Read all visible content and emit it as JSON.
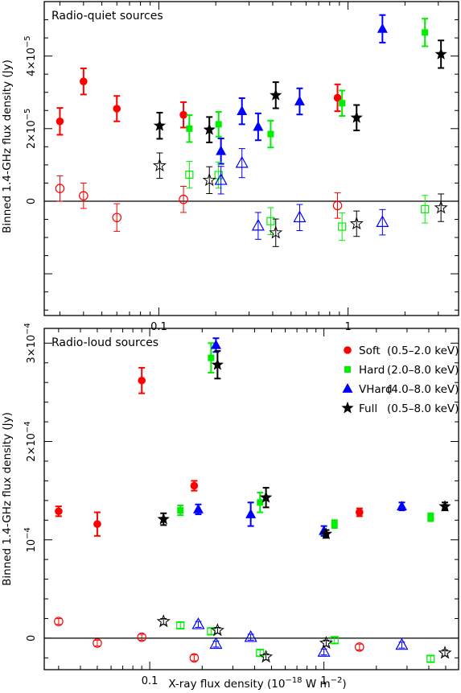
{
  "chart_data": {
    "type": "scatter",
    "x_axis": {
      "label": "X-ray flux density (10",
      "label_exp": "−18",
      "label_tail": " W m",
      "label_tail_exp": "−2",
      "label_end": ")",
      "scale": "log",
      "tick_labels": [
        "0.1",
        "1"
      ]
    },
    "colors": {
      "Soft": "#ff0000",
      "Hard": "#00ee00",
      "VHard": "#0000ff",
      "Full": "#000000"
    },
    "legend": {
      "placement": "top-right",
      "entries": [
        {
          "name": "Soft",
          "band": "(0.5–2.0 keV)"
        },
        {
          "name": "Hard",
          "band": "(2.0–8.0 keV)"
        },
        {
          "name": "VHard",
          "band": "(4.0–8.0 keV)"
        },
        {
          "name": "Full",
          "band": "(0.5–8.0 keV)"
        }
      ]
    },
    "panels": [
      {
        "title": "Radio-quiet sources",
        "ylabel": "Binned 1.4-GHz flux density (Jy)",
        "xlim": [
          0.0248,
          3.84
        ],
        "ylim": [
          -3.15e-05,
          5.5e-05
        ],
        "y_ticks": [
          {
            "value": 0,
            "base": "0",
            "exp": ""
          },
          {
            "value": 2e-05,
            "base": "2×10",
            "exp": "−5"
          },
          {
            "value": 4e-05,
            "base": "4×10",
            "exp": "−5"
          }
        ],
        "series": [
          {
            "name": "Soft",
            "marker": "circle",
            "filled": true,
            "points": [
              {
                "x": 0.03,
                "y": 2.2e-05,
                "err": 3.7e-06
              },
              {
                "x": 0.04,
                "y": 3.3e-05,
                "err": 3.6e-06
              },
              {
                "x": 0.06,
                "y": 2.55e-05,
                "err": 3.5e-06
              },
              {
                "x": 0.135,
                "y": 2.38e-05,
                "err": 3.5e-06
              },
              {
                "x": 0.88,
                "y": 2.85e-05,
                "err": 3.7e-06
              }
            ]
          },
          {
            "name": "Hard",
            "marker": "square",
            "filled": true,
            "points": [
              {
                "x": 0.145,
                "y": 2e-05,
                "err": 3.7e-06
              },
              {
                "x": 0.207,
                "y": 2.12e-05,
                "err": 3.4e-06
              },
              {
                "x": 0.39,
                "y": 1.85e-05,
                "err": 3.7e-06
              },
              {
                "x": 0.93,
                "y": 2.7e-05,
                "err": 3.5e-06
              },
              {
                "x": 2.55,
                "y": 4.65e-05,
                "err": 3.8e-06
              }
            ]
          },
          {
            "name": "VHard",
            "marker": "triangle",
            "filled": true,
            "points": [
              {
                "x": 0.213,
                "y": 1.38e-05,
                "err": 3.5e-06
              },
              {
                "x": 0.275,
                "y": 2.48e-05,
                "err": 3.6e-06
              },
              {
                "x": 0.335,
                "y": 2.05e-05,
                "err": 3.7e-06
              },
              {
                "x": 0.555,
                "y": 2.75e-05,
                "err": 3.6e-06
              },
              {
                "x": 1.52,
                "y": 4.75e-05,
                "err": 3.8e-06
              }
            ]
          },
          {
            "name": "Full",
            "marker": "star",
            "filled": true,
            "points": [
              {
                "x": 0.101,
                "y": 2.08e-05,
                "err": 3.6e-06
              },
              {
                "x": 0.185,
                "y": 1.97e-05,
                "err": 3.5e-06
              },
              {
                "x": 0.415,
                "y": 2.92e-05,
                "err": 3.6e-06
              },
              {
                "x": 1.11,
                "y": 2.3e-05,
                "err": 3.5e-06
              },
              {
                "x": 3.1,
                "y": 4.05e-05,
                "err": 3.8e-06
              }
            ]
          },
          {
            "name": "Soft",
            "marker": "circle",
            "filled": false,
            "points": [
              {
                "x": 0.03,
                "y": 3.5e-06,
                "err": 3.5e-06
              },
              {
                "x": 0.04,
                "y": 1.5e-06,
                "err": 3.5e-06
              },
              {
                "x": 0.06,
                "y": -4.5e-06,
                "err": 3.8e-06
              },
              {
                "x": 0.135,
                "y": 5e-07,
                "err": 3.6e-06
              },
              {
                "x": 0.88,
                "y": -1.2e-06,
                "err": 3.5e-06
              }
            ]
          },
          {
            "name": "Hard",
            "marker": "square",
            "filled": false,
            "points": [
              {
                "x": 0.145,
                "y": 7.3e-06,
                "err": 3.7e-06
              },
              {
                "x": 0.207,
                "y": 7.2e-06,
                "err": 3.6e-06
              },
              {
                "x": 0.39,
                "y": -5.5e-06,
                "err": 3.7e-06
              },
              {
                "x": 0.93,
                "y": -7e-06,
                "err": 3.8e-06
              },
              {
                "x": 2.55,
                "y": -2.2e-06,
                "err": 3.8e-06
              }
            ]
          },
          {
            "name": "VHard",
            "marker": "triangle",
            "filled": false,
            "points": [
              {
                "x": 0.213,
                "y": 5.8e-06,
                "err": 3.8e-06
              },
              {
                "x": 0.275,
                "y": 1.05e-05,
                "err": 4e-06
              },
              {
                "x": 0.335,
                "y": -6.8e-06,
                "err": 3.7e-06
              },
              {
                "x": 0.555,
                "y": -4.5e-06,
                "err": 3.6e-06
              },
              {
                "x": 1.52,
                "y": -5.8e-06,
                "err": 3.5e-06
              }
            ]
          },
          {
            "name": "Full",
            "marker": "star",
            "filled": false,
            "points": [
              {
                "x": 0.101,
                "y": 9.8e-06,
                "err": 3.5e-06
              },
              {
                "x": 0.185,
                "y": 5.8e-06,
                "err": 3.7e-06
              },
              {
                "x": 0.415,
                "y": -8.7e-06,
                "err": 3.8e-06
              },
              {
                "x": 1.11,
                "y": -6.2e-06,
                "err": 3.5e-06
              },
              {
                "x": 3.1,
                "y": -1.8e-06,
                "err": 3.8e-06
              }
            ]
          }
        ]
      },
      {
        "title": "Radio-loud sources",
        "ylabel": "Binned 1.4-GHz flux density (Jy)",
        "xlim": [
          0.0248,
          5.93
        ],
        "ylim": [
          -3.2e-05,
          0.000315
        ],
        "y_ticks": [
          {
            "value": 0,
            "base": "0",
            "exp": ""
          },
          {
            "value": 0.0001,
            "base": "10",
            "exp": "−4"
          },
          {
            "value": 0.0002,
            "base": "2×10",
            "exp": "−4"
          },
          {
            "value": 0.0003,
            "base": "3×10",
            "exp": "−4"
          }
        ],
        "series": [
          {
            "name": "Soft",
            "marker": "circle",
            "filled": true,
            "points": [
              {
                "x": 0.03,
                "y": 0.000129,
                "err": 5e-06
              },
              {
                "x": 0.05,
                "y": 0.000116,
                "err": 1.2e-05
              },
              {
                "x": 0.09,
                "y": 0.000262,
                "err": 1.3e-05
              },
              {
                "x": 0.18,
                "y": 0.000155,
                "err": 5e-06
              },
              {
                "x": 1.6,
                "y": 0.000128,
                "err": 4e-06
              }
            ]
          },
          {
            "name": "Hard",
            "marker": "square",
            "filled": true,
            "points": [
              {
                "x": 0.15,
                "y": 0.00013,
                "err": 5e-06
              },
              {
                "x": 0.225,
                "y": 0.000285,
                "err": 1.5e-05
              },
              {
                "x": 0.43,
                "y": 0.000138,
                "err": 1e-05
              },
              {
                "x": 1.15,
                "y": 0.000116,
                "err": 4e-06
              },
              {
                "x": 4.1,
                "y": 0.000123,
                "err": 4e-06
              }
            ]
          },
          {
            "name": "VHard",
            "marker": "triangle",
            "filled": true,
            "points": [
              {
                "x": 0.19,
                "y": 0.000131,
                "err": 5e-06
              },
              {
                "x": 0.24,
                "y": 0.000298,
                "err": 7e-06
              },
              {
                "x": 0.38,
                "y": 0.000126,
                "err": 1.2e-05
              },
              {
                "x": 1.0,
                "y": 0.000109,
                "err": 5e-06
              },
              {
                "x": 2.8,
                "y": 0.000134,
                "err": 4e-06
              }
            ]
          },
          {
            "name": "Full",
            "marker": "star",
            "filled": true,
            "points": [
              {
                "x": 0.12,
                "y": 0.000121,
                "err": 6e-06
              },
              {
                "x": 0.245,
                "y": 0.000278,
                "err": 1.4e-05
              },
              {
                "x": 0.465,
                "y": 0.000143,
                "err": 1e-05
              },
              {
                "x": 1.03,
                "y": 0.000106,
                "err": 4e-06
              },
              {
                "x": 4.95,
                "y": 0.000134,
                "err": 4e-06
              }
            ]
          },
          {
            "name": "Soft",
            "marker": "circle",
            "filled": false,
            "points": [
              {
                "x": 0.03,
                "y": 1.7e-05,
                "err": 3e-06
              },
              {
                "x": 0.05,
                "y": -5e-06,
                "err": 3e-06
              },
              {
                "x": 0.09,
                "y": 1e-06,
                "err": 3e-06
              },
              {
                "x": 0.18,
                "y": -2e-05,
                "err": 3e-06
              },
              {
                "x": 1.6,
                "y": -9e-06,
                "err": 3e-06
              }
            ]
          },
          {
            "name": "Hard",
            "marker": "square",
            "filled": false,
            "points": [
              {
                "x": 0.15,
                "y": 1.3e-05,
                "err": 3e-06
              },
              {
                "x": 0.225,
                "y": 7e-06,
                "err": 3e-06
              },
              {
                "x": 0.43,
                "y": -1.5e-05,
                "err": 3e-06
              },
              {
                "x": 1.15,
                "y": -2e-06,
                "err": 3e-06
              },
              {
                "x": 4.1,
                "y": -2.1e-05,
                "err": 3e-06
              }
            ]
          },
          {
            "name": "VHard",
            "marker": "triangle",
            "filled": false,
            "points": [
              {
                "x": 0.19,
                "y": 1.4e-05,
                "err": 3e-06
              },
              {
                "x": 0.24,
                "y": -6e-06,
                "err": 3e-06
              },
              {
                "x": 0.38,
                "y": 1e-06,
                "err": 3e-06
              },
              {
                "x": 1.0,
                "y": -1.4e-05,
                "err": 3e-06
              },
              {
                "x": 2.8,
                "y": -7e-06,
                "err": 3e-06
              }
            ]
          },
          {
            "name": "Full",
            "marker": "star",
            "filled": false,
            "points": [
              {
                "x": 0.12,
                "y": 1.7e-05,
                "err": 3e-06
              },
              {
                "x": 0.245,
                "y": 8e-06,
                "err": 3e-06
              },
              {
                "x": 0.465,
                "y": -1.9e-05,
                "err": 3e-06
              },
              {
                "x": 1.03,
                "y": -5e-06,
                "err": 3e-06
              },
              {
                "x": 4.95,
                "y": -1.5e-05,
                "err": 3e-06
              }
            ]
          }
        ]
      }
    ]
  }
}
